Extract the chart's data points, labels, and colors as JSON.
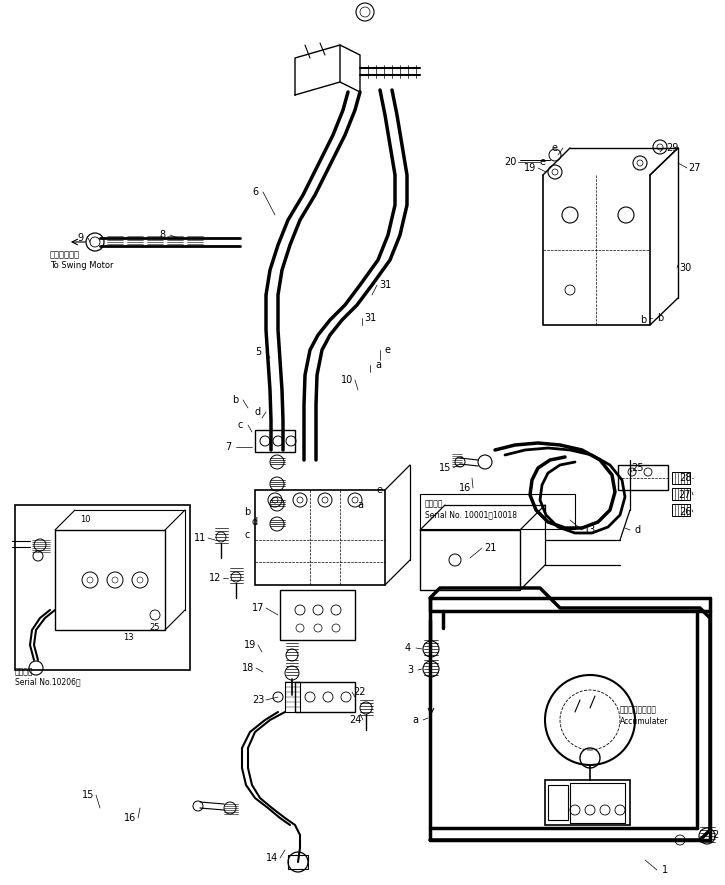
{
  "bg_color": "#ffffff",
  "line_color": "#000000",
  "fig_width": 7.25,
  "fig_height": 8.85,
  "dpi": 100,
  "swing_motor_jp": "旋回モータへ",
  "swing_motor_en": "To Swing Motor",
  "serial_1_jp": "適用号履",
  "serial_1_val": "Serial No. 10001～10018",
  "serial_2_jp": "適用号履",
  "serial_2_val": "Serial No.10206～",
  "acc_jp": "アキュームレータ",
  "acc_en": "Accumulater"
}
